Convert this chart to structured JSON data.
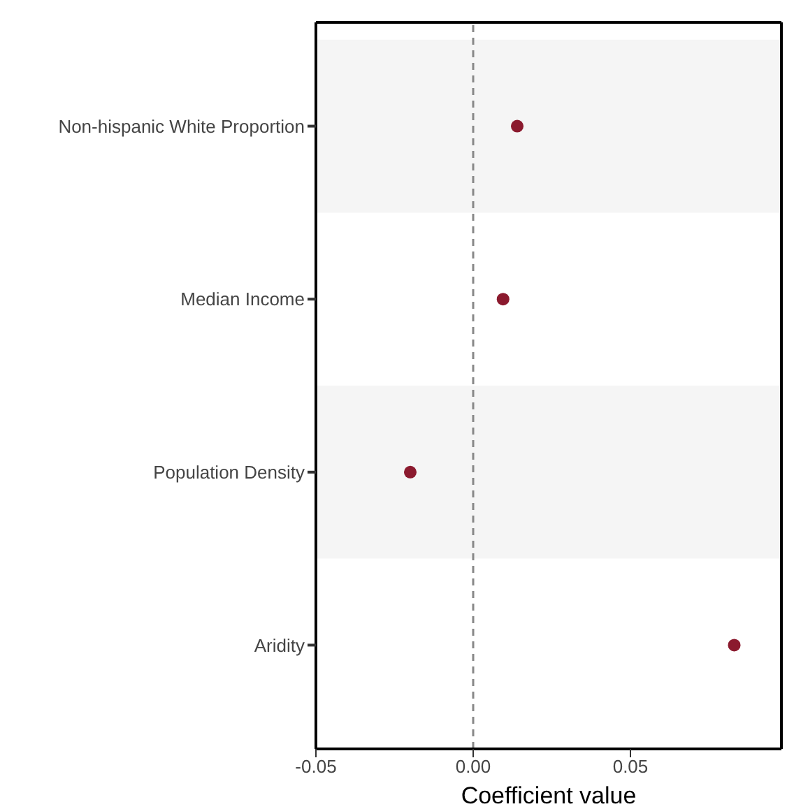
{
  "chart_data": {
    "type": "scatter",
    "orientation": "horizontal",
    "xlabel": "Coefficient value",
    "categories": [
      "Non-hispanic White Proportion",
      "Median Income",
      "Population Density",
      "Aridity"
    ],
    "series": [
      {
        "color": "#8b1a2e",
        "values": [
          0.014,
          0.0095,
          -0.02,
          0.083
        ]
      }
    ],
    "xlim": [
      -0.05,
      0.098
    ],
    "xticks": [
      {
        "value": -0.05,
        "label": "-0.05"
      },
      {
        "value": 0,
        "label": "0.00"
      },
      {
        "value": 0.05,
        "label": "0.05"
      }
    ],
    "ref_lines": [
      {
        "axis": "x",
        "value": 0,
        "color": "#888888",
        "line_style": "dashed"
      }
    ],
    "bands": [
      {
        "axis": "y",
        "from": "Non-hispanic White Proportion",
        "to": "Non-hispanic White Proportion",
        "color": "#f5f5f5"
      },
      {
        "axis": "y",
        "from": "Population Density",
        "to": "Population Density",
        "color": "#f5f5f5"
      }
    ],
    "marker": "circle"
  }
}
